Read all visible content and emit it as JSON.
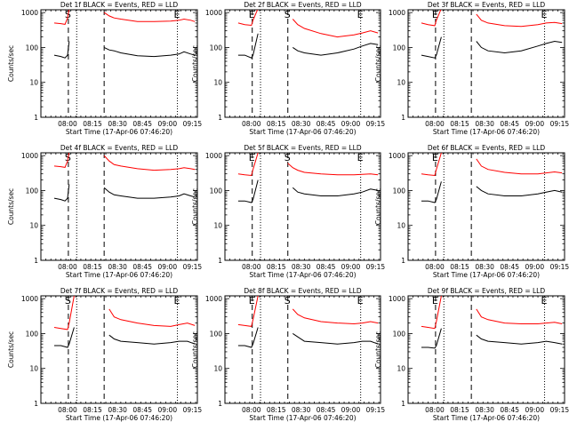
{
  "chart_data": [
    {
      "type": "line",
      "title": "Det 1f BLACK = Events, RED = LLD",
      "xlabel": "Start Time (17-Apr-06 07:46:20)",
      "ylabel": "Counts/sec",
      "series": [
        {
          "color": "#000000",
          "x": [
            0,
            4,
            6.5,
            8,
            9,
            11,
            12,
            14,
            30,
            33,
            36,
            40,
            50,
            60,
            70,
            75,
            78,
            82,
            84.5
          ],
          "y": [
            60,
            55,
            50,
            60,
            150,
            null,
            null,
            null,
            100,
            85,
            80,
            70,
            58,
            55,
            60,
            65,
            75,
            65,
            60
          ]
        },
        {
          "color": "#ff0000",
          "x": [
            0,
            4,
            6.5,
            8,
            9,
            11,
            12,
            14,
            30,
            33,
            36,
            40,
            50,
            60,
            70,
            75,
            78,
            82,
            84.5
          ],
          "y": [
            500,
            480,
            460,
            700,
            1300,
            null,
            null,
            null,
            1000,
            800,
            700,
            650,
            550,
            550,
            570,
            600,
            650,
            600,
            550
          ]
        }
      ],
      "markers": [
        {
          "x": 8.5,
          "label": "S",
          "style": "long-dash"
        },
        {
          "x": 13.5,
          "label": "",
          "style": "dotted"
        },
        {
          "x": 30,
          "label": "",
          "style": "long-dash"
        },
        {
          "x": 74,
          "label": "E",
          "style": "dotted"
        }
      ]
    },
    {
      "type": "line",
      "title": "Det 2f BLACK = Events, RED = LLD",
      "xlabel": "Start Time (17-Apr-06 07:46:20)",
      "ylabel": "Counts/sec",
      "series": [
        {
          "color": "#000000",
          "x": [
            0,
            4,
            8,
            9,
            12,
            14,
            30,
            33,
            36,
            40,
            50,
            60,
            70,
            75,
            80,
            84.5
          ],
          "y": [
            60,
            60,
            50,
            60,
            250,
            null,
            null,
            100,
            80,
            70,
            60,
            70,
            90,
            110,
            130,
            120
          ]
        },
        {
          "color": "#ff0000",
          "x": [
            0,
            4,
            8,
            9,
            12,
            14,
            30,
            33,
            36,
            40,
            50,
            60,
            70,
            75,
            80,
            84.5
          ],
          "y": [
            500,
            450,
            430,
            600,
            1300,
            null,
            null,
            650,
            450,
            350,
            250,
            200,
            230,
            260,
            300,
            260
          ]
        }
      ],
      "markers": [
        {
          "x": 8.5,
          "label": "E",
          "style": "long-dash"
        },
        {
          "x": 13.5,
          "label": "",
          "style": "dotted"
        },
        {
          "x": 30,
          "label": "S",
          "style": "long-dash"
        },
        {
          "x": 74,
          "label": "E",
          "style": "dotted"
        }
      ]
    },
    {
      "type": "line",
      "title": "Det 3f BLACK = Events, RED = LLD",
      "xlabel": "Start Time (17-Apr-06 07:46:20)",
      "ylabel": "Counts/sec",
      "series": [
        {
          "color": "#000000",
          "x": [
            0,
            4,
            8,
            9,
            12,
            14,
            30,
            33,
            36,
            40,
            50,
            60,
            70,
            75,
            80,
            84.5
          ],
          "y": [
            60,
            55,
            50,
            60,
            200,
            null,
            null,
            150,
            100,
            80,
            70,
            80,
            110,
            130,
            150,
            140
          ]
        },
        {
          "color": "#ff0000",
          "x": [
            0,
            4,
            8,
            9,
            12,
            14,
            30,
            33,
            36,
            40,
            50,
            60,
            70,
            75,
            80,
            84.5
          ],
          "y": [
            500,
            450,
            420,
            600,
            1300,
            null,
            null,
            900,
            600,
            500,
            420,
            400,
            450,
            500,
            520,
            480
          ]
        }
      ],
      "markers": [
        {
          "x": 8.5,
          "label": "E",
          "style": "long-dash"
        },
        {
          "x": 13.5,
          "label": "",
          "style": "dotted"
        },
        {
          "x": 30,
          "label": "",
          "style": "long-dash"
        },
        {
          "x": 74,
          "label": "E",
          "style": "dotted"
        }
      ]
    },
    {
      "type": "line",
      "title": "Det 4f BLACK = Events, RED = LLD",
      "xlabel": "Start Time (17-Apr-06 07:46:20)",
      "ylabel": "Counts/sec",
      "series": [
        {
          "color": "#000000",
          "x": [
            0,
            4,
            6.5,
            8,
            9,
            11,
            12,
            14,
            30,
            33,
            36,
            40,
            50,
            60,
            70,
            75,
            78,
            82,
            84.5
          ],
          "y": [
            60,
            55,
            50,
            60,
            150,
            null,
            null,
            null,
            120,
            90,
            75,
            70,
            60,
            60,
            65,
            70,
            80,
            70,
            65
          ]
        },
        {
          "color": "#ff0000",
          "x": [
            0,
            4,
            6.5,
            8,
            9,
            11,
            12,
            14,
            30,
            33,
            36,
            40,
            50,
            60,
            70,
            75,
            78,
            82,
            84.5
          ],
          "y": [
            500,
            480,
            460,
            700,
            1300,
            null,
            null,
            null,
            1000,
            700,
            550,
            500,
            420,
            380,
            400,
            420,
            450,
            420,
            400
          ]
        }
      ],
      "markers": [
        {
          "x": 8.5,
          "label": "S",
          "style": "long-dash"
        },
        {
          "x": 13.5,
          "label": "",
          "style": "dotted"
        },
        {
          "x": 30,
          "label": "",
          "style": "long-dash"
        },
        {
          "x": 74,
          "label": "",
          "style": "dotted"
        }
      ]
    },
    {
      "type": "line",
      "title": "Det 5f BLACK = Events, RED = LLD",
      "xlabel": "Start Time (17-Apr-06 07:46:20)",
      "ylabel": "Counts/sec",
      "series": [
        {
          "color": "#000000",
          "x": [
            0,
            4,
            8,
            9,
            12,
            14,
            30,
            33,
            36,
            40,
            50,
            60,
            70,
            75,
            80,
            84.5
          ],
          "y": [
            50,
            50,
            45,
            55,
            200,
            null,
            null,
            120,
            90,
            80,
            70,
            70,
            80,
            90,
            110,
            100
          ]
        },
        {
          "color": "#ff0000",
          "x": [
            0,
            4,
            8,
            9,
            12,
            14,
            25,
            30,
            33,
            36,
            40,
            50,
            60,
            70,
            75,
            80,
            84.5
          ],
          "y": [
            300,
            280,
            270,
            400,
            1200,
            null,
            null,
            600,
            450,
            380,
            330,
            300,
            280,
            280,
            290,
            300,
            280
          ]
        }
      ],
      "markers": [
        {
          "x": 8.5,
          "label": "E",
          "style": "long-dash"
        },
        {
          "x": 13.5,
          "label": "",
          "style": "dotted"
        },
        {
          "x": 30,
          "label": "S",
          "style": "long-dash"
        },
        {
          "x": 74,
          "label": "E",
          "style": "dotted"
        }
      ]
    },
    {
      "type": "line",
      "title": "Det 6f BLACK = Events, RED = LLD",
      "xlabel": "Start Time (17-Apr-06 07:46:20)",
      "ylabel": "Counts/sec",
      "series": [
        {
          "color": "#000000",
          "x": [
            0,
            4,
            8,
            9,
            12,
            14,
            30,
            33,
            36,
            40,
            50,
            60,
            70,
            75,
            80,
            84.5
          ],
          "y": [
            50,
            50,
            45,
            55,
            180,
            null,
            null,
            130,
            100,
            80,
            70,
            70,
            80,
            90,
            100,
            90
          ]
        },
        {
          "color": "#ff0000",
          "x": [
            0,
            4,
            8,
            9,
            12,
            14,
            30,
            33,
            36,
            40,
            50,
            60,
            70,
            75,
            80,
            84.5
          ],
          "y": [
            300,
            280,
            270,
            400,
            1200,
            null,
            null,
            800,
            500,
            400,
            330,
            300,
            300,
            320,
            340,
            320
          ]
        }
      ],
      "markers": [
        {
          "x": 8.5,
          "label": "E",
          "style": "long-dash"
        },
        {
          "x": 13.5,
          "label": "",
          "style": "dotted"
        },
        {
          "x": 30,
          "label": "",
          "style": "long-dash"
        },
        {
          "x": 74,
          "label": "",
          "style": "dotted"
        }
      ]
    },
    {
      "type": "line",
      "title": "Det 7f BLACK = Events, RED = LLD",
      "xlabel": "Start Time (17-Apr-06 07:46:20)",
      "ylabel": "Counts/sec",
      "series": [
        {
          "color": "#000000",
          "x": [
            0,
            4,
            8,
            9,
            12,
            14,
            30,
            33,
            36,
            40,
            50,
            60,
            70,
            75,
            80,
            84.5
          ],
          "y": [
            45,
            45,
            40,
            50,
            150,
            null,
            null,
            90,
            70,
            60,
            55,
            50,
            55,
            60,
            60,
            50
          ]
        },
        {
          "color": "#ff0000",
          "x": [
            0,
            4,
            8,
            9,
            12,
            14,
            30,
            33,
            36,
            40,
            50,
            60,
            70,
            75,
            80,
            84.5
          ],
          "y": [
            150,
            140,
            130,
            200,
            1200,
            null,
            null,
            500,
            300,
            250,
            200,
            170,
            160,
            180,
            200,
            170
          ]
        }
      ],
      "markers": [
        {
          "x": 8.5,
          "label": "S",
          "style": "long-dash"
        },
        {
          "x": 13.5,
          "label": "",
          "style": "dotted"
        },
        {
          "x": 30,
          "label": "",
          "style": "long-dash"
        },
        {
          "x": 74,
          "label": "E",
          "style": "dotted"
        }
      ]
    },
    {
      "type": "line",
      "title": "Det 8f BLACK = Events, RED = LLD",
      "xlabel": "Start Time (17-Apr-06 07:46:20)",
      "ylabel": "Counts/sec",
      "series": [
        {
          "color": "#000000",
          "x": [
            0,
            4,
            8,
            9,
            12,
            14,
            30,
            33,
            36,
            40,
            50,
            60,
            70,
            75,
            80,
            84.5
          ],
          "y": [
            45,
            45,
            40,
            50,
            150,
            null,
            null,
            100,
            80,
            60,
            55,
            50,
            55,
            60,
            60,
            50
          ]
        },
        {
          "color": "#ff0000",
          "x": [
            0,
            4,
            8,
            9,
            12,
            14,
            30,
            33,
            36,
            40,
            50,
            60,
            70,
            75,
            80,
            84.5
          ],
          "y": [
            180,
            170,
            160,
            250,
            1200,
            null,
            null,
            500,
            350,
            280,
            220,
            200,
            190,
            200,
            220,
            200
          ]
        }
      ],
      "markers": [
        {
          "x": 8.5,
          "label": "E",
          "style": "long-dash"
        },
        {
          "x": 13.5,
          "label": "",
          "style": "dotted"
        },
        {
          "x": 30,
          "label": "S",
          "style": "long-dash"
        },
        {
          "x": 74,
          "label": "E",
          "style": "dotted"
        }
      ]
    },
    {
      "type": "line",
      "title": "Det 9f BLACK = Events, RED = LLD",
      "xlabel": "Start Time (17-Apr-06 07:46:20)",
      "ylabel": "Counts/sec",
      "series": [
        {
          "color": "#000000",
          "x": [
            0,
            4,
            8,
            9,
            12,
            14,
            30,
            33,
            36,
            40,
            50,
            60,
            70,
            75,
            80,
            84.5
          ],
          "y": [
            40,
            40,
            38,
            45,
            140,
            null,
            null,
            90,
            70,
            60,
            55,
            50,
            55,
            60,
            55,
            50
          ]
        },
        {
          "color": "#ff0000",
          "x": [
            0,
            4,
            8,
            9,
            12,
            14,
            30,
            33,
            36,
            40,
            50,
            60,
            70,
            75,
            80,
            84.5
          ],
          "y": [
            160,
            150,
            140,
            220,
            1200,
            null,
            null,
            500,
            300,
            250,
            200,
            190,
            190,
            200,
            210,
            190
          ]
        }
      ],
      "markers": [
        {
          "x": 8.5,
          "label": "E",
          "style": "long-dash"
        },
        {
          "x": 13.5,
          "label": "",
          "style": "dotted"
        },
        {
          "x": 30,
          "label": "",
          "style": "long-dash"
        },
        {
          "x": 74,
          "label": "E",
          "style": "dotted"
        }
      ]
    }
  ],
  "axis": {
    "x_range": [
      -8,
      86
    ],
    "x_tick_values": [
      8,
      23,
      38,
      53,
      68,
      83
    ],
    "x_tick_labels": [
      "08:00",
      "08:15",
      "08:30",
      "08:45",
      "09:00",
      "09:15"
    ],
    "x_unit": "minutes after 07:52",
    "y_range": [
      1,
      1200
    ],
    "y_scale": "log",
    "y_tick_values": [
      1,
      10,
      100,
      1000
    ],
    "y_tick_labels": [
      "1",
      "10",
      "100",
      "1000"
    ]
  }
}
